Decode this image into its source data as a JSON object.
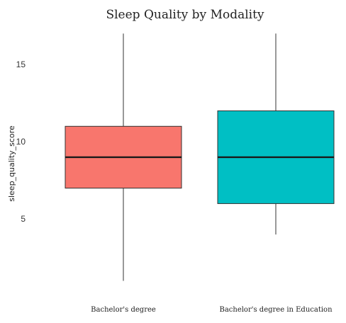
{
  "chart_data": {
    "type": "boxplot",
    "title": "Sleep Quality by Modality",
    "xlabel": "",
    "ylabel": "sleep_quality_score",
    "ylim": [
      0.2,
      17.2
    ],
    "y_ticks": [
      5,
      10,
      15
    ],
    "grid": false,
    "legend": "none",
    "categories": [
      "Bachelor's degree",
      "Bachelor's degree in Education"
    ],
    "boxes": [
      {
        "category": "Bachelor's degree",
        "min": 1,
        "q1": 7,
        "median": 9,
        "q3": 11,
        "max": 17,
        "color": "#F8766D"
      },
      {
        "category": "Bachelor's degree in Education",
        "min": 4,
        "q1": 6,
        "median": 9,
        "q3": 12,
        "max": 17,
        "color": "#00BFC4"
      }
    ]
  }
}
